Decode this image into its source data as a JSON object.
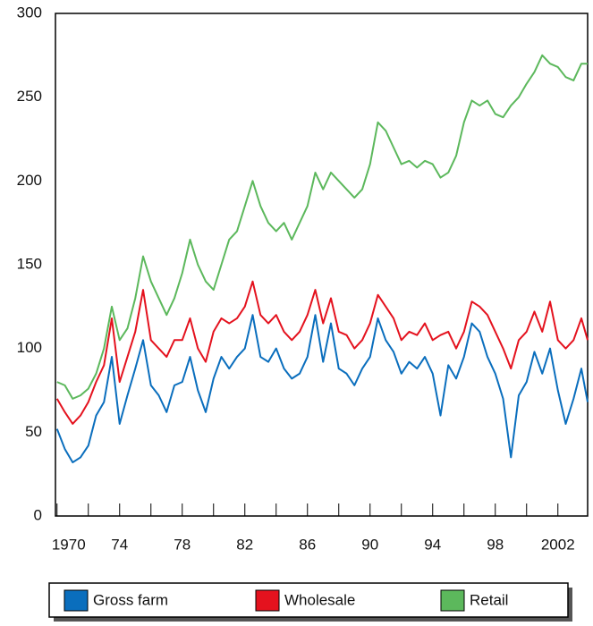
{
  "chart_data": {
    "type": "line",
    "x": [
      1970,
      1970.5,
      1971,
      1971.5,
      1972,
      1972.5,
      1973,
      1973.5,
      1974,
      1974.5,
      1975,
      1975.5,
      1976,
      1976.5,
      1977,
      1977.5,
      1978,
      1978.5,
      1979,
      1979.5,
      1980,
      1980.5,
      1981,
      1981.5,
      1982,
      1982.5,
      1983,
      1983.5,
      1984,
      1984.5,
      1985,
      1985.5,
      1986,
      1986.5,
      1987,
      1987.5,
      1988,
      1988.5,
      1989,
      1989.5,
      1990,
      1990.5,
      1991,
      1991.5,
      1992,
      1992.5,
      1993,
      1993.5,
      1994,
      1994.5,
      1995,
      1995.5,
      1996,
      1996.5,
      1997,
      1997.5,
      1998,
      1998.5,
      1999,
      1999.5,
      2000,
      2000.5,
      2001,
      2001.5,
      2002,
      2002.5,
      2003,
      2003.5,
      2003.9
    ],
    "series": [
      {
        "name": "Gross farm",
        "color": "#0a6ebd",
        "values": [
          52,
          40,
          32,
          35,
          42,
          60,
          68,
          95,
          55,
          72,
          88,
          105,
          78,
          72,
          62,
          78,
          80,
          95,
          75,
          62,
          82,
          95,
          88,
          95,
          100,
          120,
          95,
          92,
          100,
          88,
          82,
          85,
          95,
          120,
          92,
          115,
          88,
          85,
          78,
          88,
          95,
          118,
          105,
          98,
          85,
          92,
          88,
          95,
          85,
          60,
          90,
          82,
          95,
          115,
          110,
          95,
          85,
          70,
          35,
          72,
          80,
          98,
          85,
          100,
          75,
          55,
          70,
          88,
          68
        ]
      },
      {
        "name": "Wholesale",
        "color": "#e4121e",
        "values": [
          70,
          62,
          55,
          60,
          68,
          80,
          90,
          118,
          80,
          95,
          110,
          135,
          105,
          100,
          95,
          105,
          105,
          118,
          100,
          92,
          110,
          118,
          115,
          118,
          125,
          140,
          120,
          115,
          120,
          110,
          105,
          110,
          120,
          135,
          115,
          130,
          110,
          108,
          100,
          105,
          115,
          132,
          125,
          118,
          105,
          110,
          108,
          115,
          105,
          108,
          110,
          100,
          110,
          128,
          125,
          120,
          110,
          100,
          88,
          105,
          110,
          122,
          110,
          128,
          105,
          100,
          105,
          118,
          105
        ]
      },
      {
        "name": "Retail",
        "color": "#5cb85c",
        "values": [
          80,
          78,
          70,
          72,
          76,
          85,
          100,
          125,
          105,
          112,
          130,
          155,
          140,
          130,
          120,
          130,
          145,
          165,
          150,
          140,
          135,
          150,
          165,
          170,
          185,
          200,
          185,
          175,
          170,
          175,
          165,
          175,
          185,
          205,
          195,
          205,
          200,
          195,
          190,
          195,
          210,
          235,
          230,
          220,
          210,
          212,
          208,
          212,
          210,
          202,
          205,
          215,
          235,
          248,
          245,
          248,
          240,
          238,
          245,
          250,
          258,
          265,
          275,
          270,
          268,
          262,
          260,
          270,
          270
        ]
      }
    ],
    "xlim": [
      1969.9,
      2003.9
    ],
    "xticks": [
      {
        "value": 1970,
        "label": "1970"
      },
      {
        "value": 1974,
        "label": "74"
      },
      {
        "value": 1978,
        "label": "78"
      },
      {
        "value": 1982,
        "label": "82"
      },
      {
        "value": 1986,
        "label": "86"
      },
      {
        "value": 1990,
        "label": "90"
      },
      {
        "value": 1994,
        "label": "94"
      },
      {
        "value": 1998,
        "label": "98"
      },
      {
        "value": 2002,
        "label": "2002"
      }
    ],
    "xminor_ticks": [
      1972,
      1976,
      1980,
      1984,
      1988,
      1992,
      1996,
      2000
    ],
    "ylim": [
      0,
      300
    ],
    "yticks": [
      0,
      50,
      100,
      150,
      200,
      250,
      300
    ],
    "grid": false
  }
}
